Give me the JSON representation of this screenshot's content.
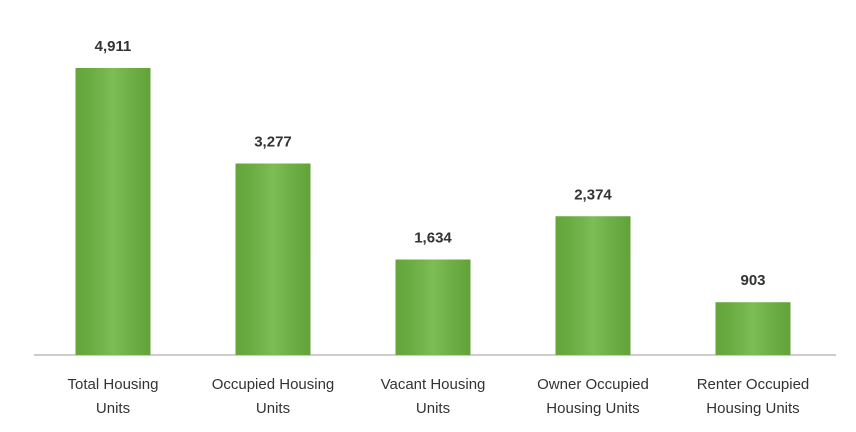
{
  "chart_data": {
    "type": "bar",
    "categories": [
      "Total Housing Units",
      "Occupied Housing Units",
      "Vacant Housing Units",
      "Owner Occupied Housing Units",
      "Renter Occupied Housing Units"
    ],
    "values": [
      4911,
      3277,
      1634,
      2374,
      903
    ],
    "value_labels": [
      "4,911",
      "3,277",
      "1,634",
      "2,374",
      "903"
    ],
    "color": "#6cb43f"
  }
}
